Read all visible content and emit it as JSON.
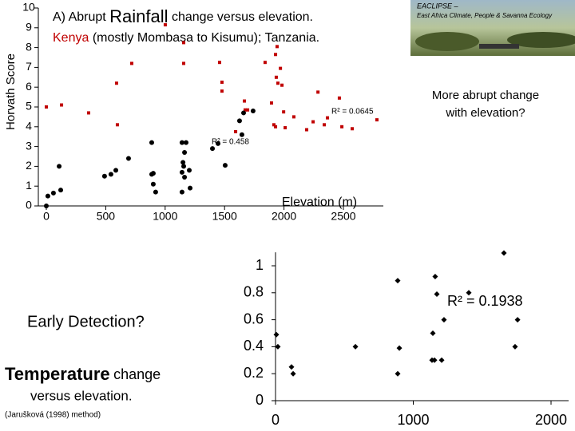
{
  "chart_data": [
    {
      "type": "scatter",
      "title": [
        "A) Abrupt",
        "Rainfall",
        "change versus elevation."
      ],
      "subtitle": "(mostly Mombasa to Kisumu);",
      "x_label": "Elevation (m)",
      "y_label": "Horvath Score",
      "xlim": [
        0,
        2800
      ],
      "xticks": [
        0,
        500,
        1000,
        1500,
        2000,
        2500
      ],
      "ylim": [
        0,
        10
      ],
      "yticks": [
        0,
        1,
        2,
        3,
        4,
        5,
        6,
        7,
        8,
        9,
        10
      ],
      "annotations": [
        "R² = 0.0645",
        "R² = 0.458"
      ],
      "series": [
        {
          "name": "Kenya",
          "color": "#c00000",
          "marker": "square",
          "x": [
            0,
            128,
            356,
            598,
            591,
            719,
            1001,
            1156,
            1156,
            1458,
            1478,
            1478,
            1667,
            1673,
            1694,
            1593,
            1841,
            1929,
            1970,
            1935,
            1949,
            1983,
            1895,
            1915,
            1929,
            1997,
            2010,
            2083,
            2191,
            2245,
            2339,
            2366,
            2286,
            2466,
            2487,
            2574,
            2782,
            1942
          ],
          "values": [
            5.0,
            5.1,
            4.7,
            4.1,
            6.2,
            7.2,
            9.15,
            8.25,
            7.2,
            7.25,
            6.25,
            5.8,
            5.3,
            4.85,
            4.85,
            3.75,
            7.25,
            7.65,
            6.95,
            6.5,
            6.2,
            6.1,
            5.2,
            4.1,
            4.0,
            4.75,
            3.95,
            4.5,
            3.85,
            4.25,
            4.1,
            4.45,
            5.75,
            5.45,
            4.0,
            3.9,
            4.35,
            8.05
          ]
        },
        {
          "name": "Tanzania.",
          "color": "#000000",
          "marker": "circle",
          "x": [
            0,
            13,
            60,
            121,
            108,
            490,
            544,
            585,
            692,
            887,
            887,
            900,
            900,
            920,
            1142,
            1176,
            1163,
            1150,
            1156,
            1142,
            1163,
            1142,
            1203,
            1210,
            1398,
            1445,
            1505,
            1626,
            1646,
            1660,
            1740
          ],
          "values": [
            0,
            0.5,
            0.65,
            0.8,
            2.0,
            1.5,
            1.6,
            1.8,
            2.4,
            3.2,
            1.6,
            1.65,
            1.1,
            0.7,
            3.2,
            3.2,
            2.7,
            2.2,
            2.0,
            1.7,
            1.45,
            0.7,
            1.8,
            0.9,
            2.9,
            3.15,
            2.05,
            4.3,
            3.6,
            4.7,
            4.8
          ]
        }
      ]
    },
    {
      "type": "scatter",
      "xlim": [
        0,
        2000
      ],
      "xticks": [
        0,
        1000,
        2000
      ],
      "ylim": [
        0,
        1.1
      ],
      "yticks": [
        0,
        0.2,
        0.4,
        0.6,
        0.8,
        1
      ],
      "annotations": [
        "R² = 0.1938"
      ],
      "series": [
        {
          "color": "#000000",
          "marker": "diamond",
          "x": [
            1658,
            887,
            1159,
            1171,
            1403,
            1757,
            1223,
            1142,
            6,
            17,
            580,
            899,
            1739,
            1136,
            1154,
            1206,
            116,
            128,
            887
          ],
          "values": [
            1.095,
            0.89,
            0.92,
            0.79,
            0.8,
            0.6,
            0.6,
            0.5,
            0.49,
            0.4,
            0.4,
            0.39,
            0.4,
            0.3,
            0.3,
            0.3,
            0.25,
            0.2,
            0.2
          ]
        }
      ]
    }
  ],
  "slide": {
    "note": [
      "More abrupt change",
      "with elevation?"
    ],
    "early": "Early Detection?",
    "temp_title": [
      "Temperature",
      "change"
    ],
    "temp_sub": "versus elevation.",
    "method": "(Jarušková (1998) method)",
    "image_caption": [
      "EACLIPSE –",
      "East Africa Climate, People & Savanna Ecology"
    ]
  }
}
